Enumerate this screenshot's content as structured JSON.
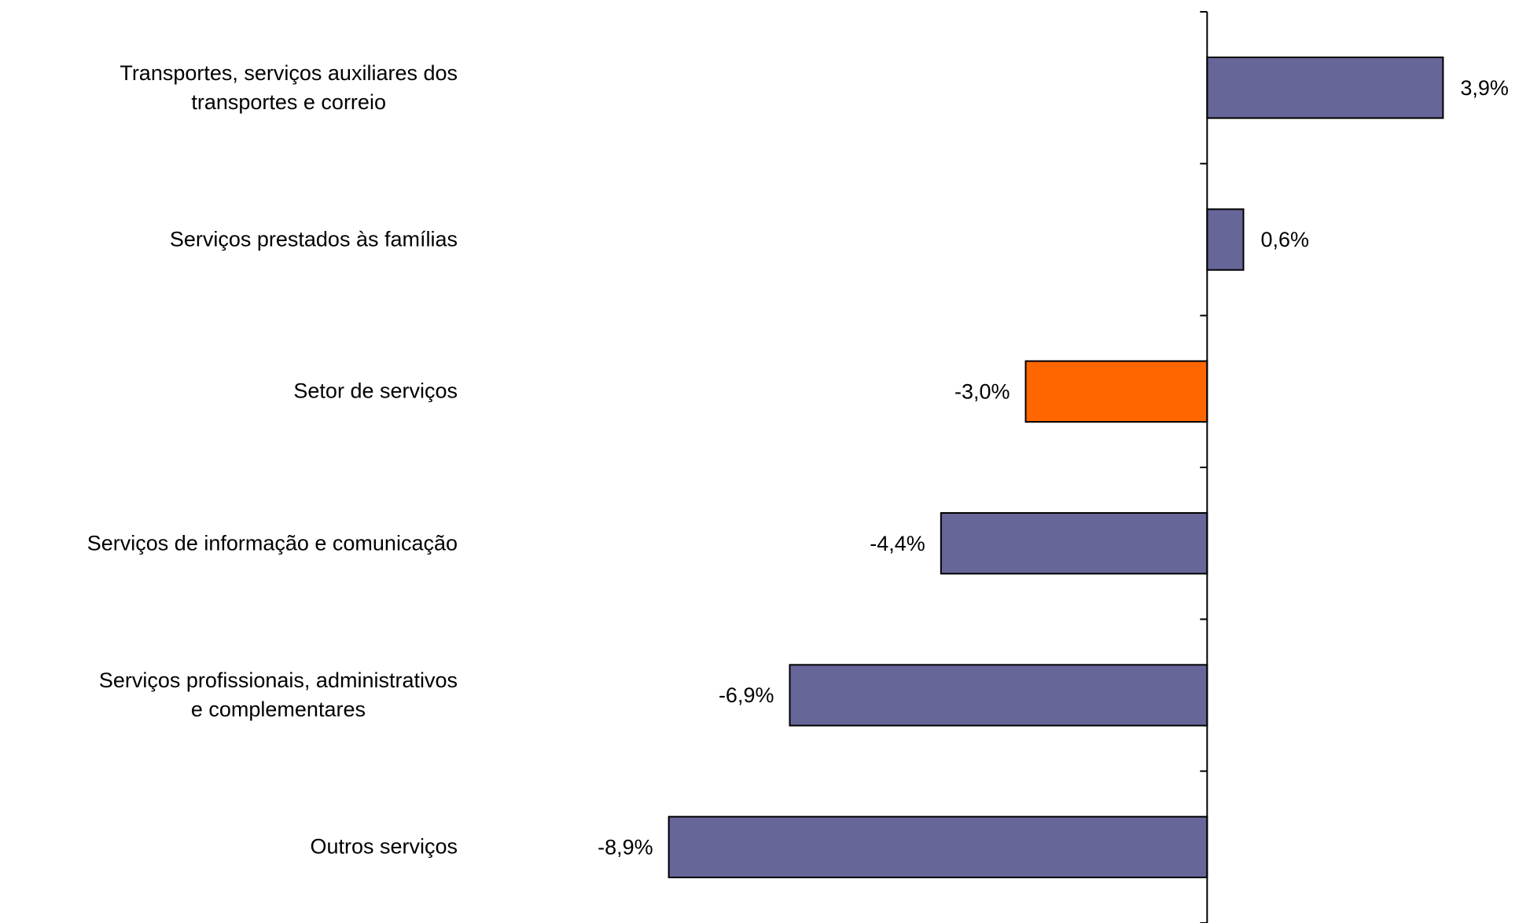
{
  "chart_data": {
    "type": "barh",
    "categories": [
      "Transportes, serviços auxiliares dos\ntransportes e correio",
      "Serviços prestados às famílias",
      "Setor de serviços",
      "Serviços de informação e comunicação",
      "Serviços profissionais, administrativos\ne complementares",
      "Outros serviços"
    ],
    "values": [
      3.9,
      0.6,
      -3.0,
      -4.4,
      -6.9,
      -8.9
    ],
    "value_labels": [
      "3,9%",
      "0,6%",
      "-3,0%",
      "-4,4%",
      "-6,9%",
      "-8,9%"
    ],
    "colors": [
      "#666699",
      "#666699",
      "#ff6600",
      "#666699",
      "#666699",
      "#666699"
    ],
    "xlim": [
      -10,
      5
    ]
  }
}
